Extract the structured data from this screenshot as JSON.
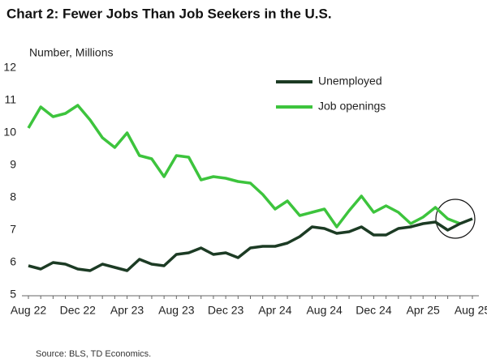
{
  "chart_data": {
    "type": "line",
    "title": "Chart 2: Fewer Jobs Than Job Seekers in the U.S.",
    "y_axis_label": "Number, Millions",
    "source": "Source: BLS, TD Economics.",
    "categories": [
      "Aug 22",
      null,
      null,
      null,
      "Dec 22",
      null,
      null,
      null,
      "Apr 23",
      null,
      null,
      null,
      "Aug 23",
      null,
      null,
      null,
      "Dec 23",
      null,
      null,
      null,
      "Apr 24",
      null,
      null,
      null,
      "Aug 24",
      null,
      null,
      null,
      "Dec 24",
      null,
      null,
      null,
      "Apr 25",
      null,
      null,
      null,
      "Aug 25"
    ],
    "series": [
      {
        "name": "Unemployed",
        "color": "#1c3b24",
        "values": [
          5.9,
          5.8,
          6.0,
          5.95,
          5.8,
          5.75,
          5.95,
          5.85,
          5.75,
          6.1,
          5.95,
          5.9,
          6.25,
          6.3,
          6.45,
          6.25,
          6.3,
          6.15,
          6.45,
          6.5,
          6.5,
          6.6,
          6.8,
          7.1,
          7.05,
          6.9,
          6.95,
          7.1,
          6.85,
          6.85,
          7.05,
          7.1,
          7.2,
          7.25,
          7.0,
          7.2,
          7.35
        ]
      },
      {
        "name": "Job openings",
        "color": "#3dc43d",
        "values": [
          10.15,
          10.8,
          10.5,
          10.6,
          10.85,
          10.4,
          9.85,
          9.55,
          10.0,
          9.3,
          9.2,
          8.65,
          9.3,
          9.25,
          8.55,
          8.65,
          8.6,
          8.5,
          8.45,
          8.1,
          7.65,
          7.9,
          7.45,
          7.55,
          7.65,
          7.1,
          7.6,
          8.05,
          7.55,
          7.75,
          7.55,
          7.2,
          7.4,
          7.7,
          7.35,
          7.2,
          null
        ]
      }
    ],
    "ylim": [
      5,
      12
    ],
    "yticks": [
      5,
      6,
      7,
      8,
      9,
      10,
      11,
      12
    ],
    "grid": false,
    "legend": "upper right"
  }
}
